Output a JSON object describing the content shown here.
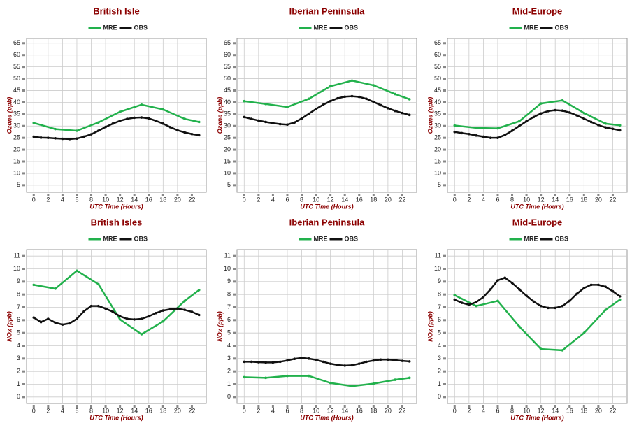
{
  "chart_data": [
    {
      "type": "line",
      "title": "British Isle",
      "x_label": "UTC Time (Hours)",
      "y_label": "Ozone (ppb)",
      "xlim": [
        -1,
        24
      ],
      "ylim": [
        2,
        67
      ],
      "xticks": [
        0,
        2,
        4,
        6,
        8,
        10,
        12,
        14,
        16,
        18,
        20,
        22
      ],
      "yticks": [
        5,
        10,
        15,
        20,
        25,
        30,
        35,
        40,
        45,
        50,
        55,
        60,
        65
      ],
      "grid": true,
      "series": [
        {
          "name": "MRE",
          "color": "#22b14c",
          "x": [
            0,
            3,
            6,
            9,
            12,
            15,
            18,
            21,
            23
          ],
          "values": [
            31.3,
            28.7,
            28,
            31.5,
            36,
            39,
            37,
            33,
            31.7
          ]
        },
        {
          "name": "OBS",
          "color": "#111111",
          "x": [
            0,
            1,
            2,
            3,
            4,
            5,
            6,
            7,
            8,
            9,
            10,
            11,
            12,
            13,
            14,
            15,
            16,
            17,
            18,
            19,
            20,
            21,
            22,
            23
          ],
          "values": [
            25.5,
            25.1,
            25,
            24.8,
            24.6,
            24.5,
            24.7,
            25.5,
            26.5,
            28,
            29.6,
            31,
            32.2,
            33,
            33.5,
            33.6,
            33.2,
            32.2,
            31,
            29.5,
            28.2,
            27.3,
            26.6,
            26.1
          ]
        }
      ]
    },
    {
      "type": "line",
      "title": "Iberian Peninsula",
      "x_label": "UTC Time (Hours)",
      "y_label": "Ozone (ppb)",
      "xlim": [
        -1,
        24
      ],
      "ylim": [
        2,
        67
      ],
      "xticks": [
        0,
        2,
        4,
        6,
        8,
        10,
        12,
        14,
        16,
        18,
        20,
        22
      ],
      "yticks": [
        5,
        10,
        15,
        20,
        25,
        30,
        35,
        40,
        45,
        50,
        55,
        60,
        65
      ],
      "grid": true,
      "series": [
        {
          "name": "MRE",
          "color": "#22b14c",
          "x": [
            0,
            3,
            6,
            9,
            12,
            15,
            18,
            21,
            23
          ],
          "values": [
            40.5,
            39.3,
            38,
            41.5,
            46.8,
            49.2,
            47.2,
            43.5,
            41.3
          ]
        },
        {
          "name": "OBS",
          "color": "#111111",
          "x": [
            0,
            1,
            2,
            3,
            4,
            5,
            6,
            7,
            8,
            9,
            10,
            11,
            12,
            13,
            14,
            15,
            16,
            17,
            18,
            19,
            20,
            21,
            22,
            23
          ],
          "values": [
            33.8,
            33,
            32.3,
            31.7,
            31.2,
            30.8,
            30.6,
            31.5,
            33.2,
            35.2,
            37.2,
            39,
            40.5,
            41.7,
            42.4,
            42.6,
            42.3,
            41.5,
            40.2,
            38.8,
            37.5,
            36.4,
            35.5,
            34.7
          ]
        }
      ]
    },
    {
      "type": "line",
      "title": "Mid-Europe",
      "x_label": "UTC Time (Hours)",
      "y_label": "Ozone (ppb)",
      "xlim": [
        -1,
        24
      ],
      "ylim": [
        2,
        67
      ],
      "xticks": [
        0,
        2,
        4,
        6,
        8,
        10,
        12,
        14,
        16,
        18,
        20,
        22
      ],
      "yticks": [
        5,
        10,
        15,
        20,
        25,
        30,
        35,
        40,
        45,
        50,
        55,
        60,
        65
      ],
      "grid": true,
      "series": [
        {
          "name": "MRE",
          "color": "#22b14c",
          "x": [
            0,
            3,
            6,
            9,
            12,
            15,
            18,
            21,
            23
          ],
          "values": [
            30.2,
            29.2,
            29,
            32,
            39.5,
            40.8,
            35.5,
            31,
            30.3
          ]
        },
        {
          "name": "OBS",
          "color": "#111111",
          "x": [
            0,
            1,
            2,
            3,
            4,
            5,
            6,
            7,
            8,
            9,
            10,
            11,
            12,
            13,
            14,
            15,
            16,
            17,
            18,
            19,
            20,
            21,
            22,
            23
          ],
          "values": [
            27.5,
            27,
            26.6,
            26,
            25.5,
            25,
            25,
            26.2,
            28,
            30,
            32,
            33.8,
            35.3,
            36.3,
            36.7,
            36.5,
            35.7,
            34.5,
            33.1,
            31.7,
            30.4,
            29.4,
            28.8,
            28.2
          ]
        }
      ]
    },
    {
      "type": "line",
      "title": "British Isles",
      "x_label": "UTC Time (Hours)",
      "y_label": "NOx (ppb)",
      "xlim": [
        -1,
        24
      ],
      "ylim": [
        -0.5,
        11.5
      ],
      "xticks": [
        0,
        2,
        4,
        6,
        8,
        10,
        12,
        14,
        16,
        18,
        20,
        22
      ],
      "yticks": [
        0,
        1,
        2,
        3,
        4,
        5,
        6,
        7,
        8,
        9,
        10,
        11
      ],
      "grid": true,
      "series": [
        {
          "name": "MRE",
          "color": "#22b14c",
          "x": [
            0,
            3,
            6,
            9,
            12,
            15,
            18,
            21,
            23
          ],
          "values": [
            8.75,
            8.45,
            9.85,
            8.8,
            6.05,
            4.9,
            5.9,
            7.5,
            8.35
          ]
        },
        {
          "name": "OBS",
          "color": "#111111",
          "x": [
            0,
            1,
            2,
            3,
            4,
            5,
            6,
            7,
            8,
            9,
            10,
            11,
            12,
            13,
            14,
            15,
            16,
            17,
            18,
            19,
            20,
            21,
            22,
            23
          ],
          "values": [
            6.2,
            5.85,
            6.1,
            5.8,
            5.65,
            5.75,
            6.1,
            6.7,
            7.1,
            7.1,
            6.9,
            6.65,
            6.3,
            6.1,
            6.05,
            6.1,
            6.3,
            6.55,
            6.75,
            6.85,
            6.9,
            6.8,
            6.65,
            6.4
          ]
        }
      ]
    },
    {
      "type": "line",
      "title": "Iberian Peninsula",
      "x_label": "UTC Time (Hours)",
      "y_label": "NOx (ppb)",
      "xlim": [
        -1,
        24
      ],
      "ylim": [
        -0.5,
        11.5
      ],
      "xticks": [
        0,
        2,
        4,
        6,
        8,
        10,
        12,
        14,
        16,
        18,
        20,
        22
      ],
      "yticks": [
        0,
        1,
        2,
        3,
        4,
        5,
        6,
        7,
        8,
        9,
        10,
        11
      ],
      "grid": true,
      "series": [
        {
          "name": "MRE",
          "color": "#22b14c",
          "x": [
            0,
            3,
            6,
            9,
            12,
            15,
            18,
            21,
            23
          ],
          "values": [
            1.55,
            1.5,
            1.65,
            1.65,
            1.1,
            0.85,
            1.05,
            1.35,
            1.5
          ]
        },
        {
          "name": "OBS",
          "color": "#111111",
          "x": [
            0,
            1,
            2,
            3,
            4,
            5,
            6,
            7,
            8,
            9,
            10,
            11,
            12,
            13,
            14,
            15,
            16,
            17,
            18,
            19,
            20,
            21,
            22,
            23
          ],
          "values": [
            2.75,
            2.75,
            2.72,
            2.7,
            2.7,
            2.75,
            2.85,
            2.98,
            3.05,
            3,
            2.9,
            2.75,
            2.6,
            2.5,
            2.45,
            2.48,
            2.6,
            2.75,
            2.85,
            2.92,
            2.92,
            2.88,
            2.82,
            2.78
          ]
        }
      ]
    },
    {
      "type": "line",
      "title": "Mid-Europe",
      "x_label": "UTC Time (Hours)",
      "y_label": "NOx (ppb)",
      "xlim": [
        -1,
        24
      ],
      "ylim": [
        -0.5,
        11.5
      ],
      "xticks": [
        0,
        2,
        4,
        6,
        8,
        10,
        12,
        14,
        16,
        18,
        20,
        22
      ],
      "yticks": [
        0,
        1,
        2,
        3,
        4,
        5,
        6,
        7,
        8,
        9,
        10,
        11
      ],
      "grid": true,
      "series": [
        {
          "name": "MRE",
          "color": "#22b14c",
          "x": [
            0,
            3,
            6,
            9,
            12,
            15,
            18,
            21,
            23
          ],
          "values": [
            7.95,
            7.1,
            7.5,
            5.5,
            3.75,
            3.65,
            5,
            6.8,
            7.6
          ]
        },
        {
          "name": "OBS",
          "color": "#111111",
          "x": [
            0,
            1,
            2,
            3,
            4,
            5,
            6,
            7,
            8,
            9,
            10,
            11,
            12,
            13,
            14,
            15,
            16,
            17,
            18,
            19,
            20,
            21,
            22,
            23
          ],
          "values": [
            7.6,
            7.35,
            7.2,
            7.4,
            7.8,
            8.4,
            9.1,
            9.3,
            8.9,
            8.4,
            7.9,
            7.45,
            7.1,
            6.95,
            6.95,
            7.1,
            7.5,
            8.05,
            8.5,
            8.75,
            8.75,
            8.6,
            8.25,
            7.85
          ]
        }
      ]
    }
  ]
}
